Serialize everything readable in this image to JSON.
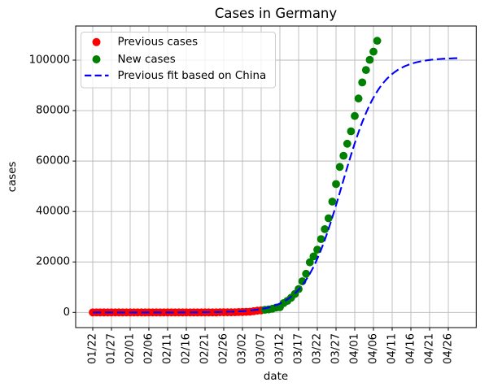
{
  "chart_data": {
    "type": "scatter",
    "title": "Cases in Germany",
    "xlabel": "date",
    "ylabel": "cases",
    "x_tick_labels": [
      "01/22",
      "01/27",
      "02/01",
      "02/06",
      "02/11",
      "02/16",
      "02/21",
      "02/26",
      "03/02",
      "03/07",
      "03/12",
      "03/17",
      "03/22",
      "03/27",
      "04/01",
      "04/06",
      "04/11",
      "04/16",
      "04/21",
      "04/26"
    ],
    "y_ticks": [
      0,
      20000,
      40000,
      60000,
      80000,
      100000
    ],
    "y_tick_labels": [
      "0",
      "20000",
      "40000",
      "60000",
      "80000",
      "100000"
    ],
    "ylim": [
      -5400,
      113100
    ],
    "xlim_days_from_0122": [
      -4.5,
      102.4
    ],
    "grid": true,
    "legend": {
      "position": "upper left",
      "entries": [
        "Previous cases",
        "New cases",
        "Previous fit based on China"
      ]
    },
    "date_origin": "01/22",
    "series": [
      {
        "name": "Previous cases",
        "type": "scatter",
        "marker": "circle",
        "color": "#ff0000",
        "start_date": "01/22",
        "end_date": "03/07",
        "cadence": "daily",
        "values": [
          0,
          0,
          0,
          0,
          0,
          1,
          4,
          4,
          4,
          5,
          8,
          10,
          12,
          12,
          12,
          12,
          13,
          13,
          14,
          14,
          16,
          16,
          16,
          16,
          16,
          16,
          16,
          16,
          16,
          16,
          16,
          16,
          16,
          16,
          17,
          27,
          46,
          48,
          79,
          130,
          159,
          196,
          262,
          482,
          670,
          799
        ]
      },
      {
        "name": "New cases",
        "type": "scatter",
        "marker": "circle",
        "color": "#008000",
        "start_date": "03/08",
        "end_date": "04/07",
        "cadence": "daily",
        "values": [
          1040,
          1176,
          1457,
          1908,
          2078,
          3675,
          4585,
          5795,
          7272,
          9257,
          12327,
          15320,
          19848,
          22213,
          24873,
          29056,
          32986,
          37323,
          43938,
          50871,
          57695,
          62095,
          66885,
          71808,
          77872,
          84794,
          91159,
          96092,
          100123,
          103374,
          107663
        ]
      },
      {
        "name": "Previous fit based on China",
        "type": "line",
        "style": "dashed",
        "color": "#0000ff",
        "fit_model": "logistic: L / (1 + exp(-k*(t - t0)))",
        "L": 101000,
        "k": 0.2,
        "t0_days_after_0122": 66.6,
        "t_range_days": [
          0,
          98
        ]
      }
    ]
  }
}
